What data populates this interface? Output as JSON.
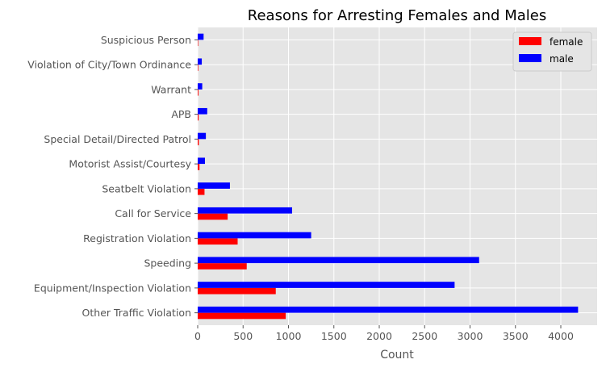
{
  "chart_data": {
    "type": "bar",
    "orientation": "horizontal",
    "title": "Reasons for Arresting Females and Males",
    "xlabel": "Count",
    "ylabel": "",
    "xlim": [
      0,
      4400
    ],
    "xticks": [
      0,
      500,
      1000,
      1500,
      2000,
      2500,
      3000,
      3500,
      4000
    ],
    "grid": true,
    "legend_position": "top-right",
    "categories": [
      "Other Traffic Violation",
      "Equipment/Inspection Violation",
      "Speeding",
      "Registration Violation",
      "Call for Service",
      "Seatbelt Violation",
      "Motorist Assist/Courtesy",
      "Special Detail/Directed Patrol",
      "APB",
      "Warrant",
      "Violation of City/Town Ordinance",
      "Suspicious Person"
    ],
    "series": [
      {
        "name": "female",
        "color": "#ff0000",
        "values": [
          970,
          860,
          540,
          440,
          330,
          75,
          20,
          12,
          10,
          8,
          6,
          5
        ]
      },
      {
        "name": "male",
        "color": "#0000ff",
        "values": [
          4190,
          2830,
          3100,
          1250,
          1040,
          355,
          80,
          90,
          105,
          50,
          45,
          65
        ]
      }
    ]
  },
  "colors": {
    "plot_background": "#e5e5e5",
    "grid": "#ffffff",
    "tick_text": "#555555",
    "title_text": "#000000"
  }
}
